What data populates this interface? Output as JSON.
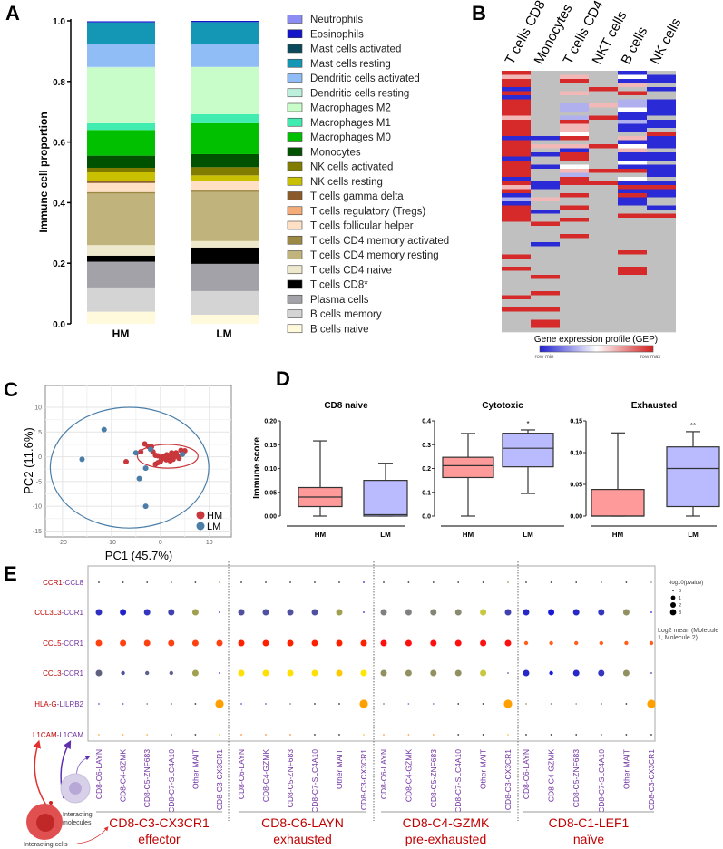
{
  "chart_data": [
    {
      "id": "A",
      "panel_label": "A",
      "type": "bar",
      "stacked": true,
      "ylabel": "Immune cell proportion",
      "ylim": [
        0,
        1
      ],
      "yticks": [
        "0.0",
        "0.2",
        "0.4",
        "0.6",
        "0.8",
        "1.0"
      ],
      "categories": [
        "HM",
        "LM"
      ],
      "legend_position": "right",
      "series": [
        {
          "name": "Neutrophils",
          "color": "#8c8cf5",
          "values": [
            0.002,
            0.0
          ]
        },
        {
          "name": "Eosinophils",
          "color": "#1414c8",
          "values": [
            0.003,
            0.004
          ]
        },
        {
          "name": "Mast cells activated",
          "color": "#0b4a5c",
          "values": [
            0.0,
            0.0
          ]
        },
        {
          "name": "Mast cells resting",
          "color": "#1497b4",
          "values": [
            0.07,
            0.071
          ]
        },
        {
          "name": "Dendritic cells activated",
          "color": "#90bdf6",
          "values": [
            0.077,
            0.077
          ]
        },
        {
          "name": "Dendritic cells resting",
          "color": "#bcefdc",
          "values": [
            0.003,
            0.0
          ]
        },
        {
          "name": "Macrophages M2",
          "color": "#c8fcc8",
          "values": [
            0.183,
            0.156
          ]
        },
        {
          "name": "Macrophages M1",
          "color": "#40ecb0",
          "values": [
            0.022,
            0.03
          ]
        },
        {
          "name": "Macrophages M0",
          "color": "#00c000",
          "values": [
            0.085,
            0.102
          ]
        },
        {
          "name": "Monocytes",
          "color": "#005200",
          "values": [
            0.04,
            0.043
          ]
        },
        {
          "name": "NK cells activated",
          "color": "#807c00",
          "values": [
            0.015,
            0.027
          ]
        },
        {
          "name": "NK cells resting",
          "color": "#c8c000",
          "values": [
            0.03,
            0.018
          ]
        },
        {
          "name": "T cells gamma delta",
          "color": "#8b5a2b",
          "values": [
            0.005,
            0.0
          ]
        },
        {
          "name": "T cells regulatory (Tregs)",
          "color": "#f4ac78",
          "values": [
            0.0,
            0.0
          ]
        },
        {
          "name": "T cells follicular helper",
          "color": "#ffe0c4",
          "values": [
            0.03,
            0.032
          ]
        },
        {
          "name": "T cells CD4 memory activated",
          "color": "#9c8a44",
          "values": [
            0.005,
            0.005
          ]
        },
        {
          "name": "T cells CD4 memory resting",
          "color": "#c0b47c",
          "values": [
            0.17,
            0.162
          ]
        },
        {
          "name": "T cells CD4 naive",
          "color": "#eee8cc",
          "values": [
            0.035,
            0.021
          ]
        },
        {
          "name": "T cells CD8*",
          "color": "#000000",
          "values": [
            0.02,
            0.054
          ]
        },
        {
          "name": "Plasma cells",
          "color": "#a2a2a8",
          "values": [
            0.085,
            0.09
          ]
        },
        {
          "name": "B cells memory",
          "color": "#d4d4d4",
          "values": [
            0.08,
            0.078
          ]
        },
        {
          "name": "B cells naive",
          "color": "#fffadc",
          "values": [
            0.04,
            0.03
          ]
        }
      ]
    },
    {
      "id": "B",
      "panel_label": "B",
      "type": "heatmap",
      "columns": [
        "T cells CD8",
        "Monocytes",
        "T cells CD4",
        "NKT cells",
        "B cells",
        "NK cells"
      ],
      "colorbar_title": "Gene expression profile (GEP)",
      "colorbar_min_label": "row min",
      "colorbar_max_label": "row max",
      "color_codes": {
        "R": "#d62a2a",
        "r": "#f2b8b8",
        "B": "#2a2ad6",
        "b": "#b0b0ee",
        "W": "#ffffff",
        "G": "#c0c0c0"
      },
      "cells": [
        "RrRRBRBRRRRrRRRRBRRRRBRRRRBRrRBbBRRRRGGGGGGGGRGGRGGGGGGRGGRGGGGG",
        "GGGGGGGGGGGGGGGGBGrGBGGBGGGBBGGrGGBGGRGGGGBGGGGGGGRGGGRGGGRGGRRG",
        "GrRGGrGGbbGbRrrWRGrBRRGWrbRRGGRGGRGGRGGGRGGGGGGGGGGGGGGGGGGGGGGG",
        "GGGGRGGGrGGRGGGGGGRGGGGGRGGRGGGGGGGGGGGGGGGGGGGGGGGGGGGGGGGGGGGG",
        "BWBrGRGbbWBBbBBGrBWrBBWBRGWBRBRBBGGRGGGGGGGGRGGGRRGGGGGGGGGGGGGG",
        "GBBGBGGBBBBGBBGRBBBGBBGBBBGBRBBGGBGRGGGGGGGGGGGGGGGGGGGGGGGGGGGG"
      ]
    },
    {
      "id": "C",
      "panel_label": "C",
      "type": "scatter",
      "xlabel": "PC1 (45.7%)",
      "ylabel": "PC2 (11.6%)",
      "xlim": [
        -23.5,
        14.5
      ],
      "ylim": [
        -16.2,
        14.4
      ],
      "xticks": [
        -20,
        -10,
        0,
        10
      ],
      "yticks": [
        -15,
        -10,
        -5,
        0,
        5,
        10
      ],
      "grid": true,
      "legend_position": "bottom-right",
      "series": [
        {
          "name": "HM",
          "color": "#c8373b",
          "ellipse": {
            "cx": 1.5,
            "cy": 0.1,
            "rx": 6.2,
            "ry": 2.4
          },
          "points": [
            [
              -7,
              -1
            ],
            [
              -4,
              1
            ],
            [
              -3.2,
              2.6
            ],
            [
              -2.5,
              2.1
            ],
            [
              -1.8,
              2
            ],
            [
              -1.5,
              1
            ],
            [
              -1,
              0.3
            ],
            [
              -0.5,
              0.2
            ],
            [
              -1,
              -1.5
            ],
            [
              -0.5,
              -1.2
            ],
            [
              0,
              -1
            ],
            [
              0.2,
              -0.5
            ],
            [
              0.5,
              0
            ],
            [
              1,
              0
            ],
            [
              1.2,
              -0.6
            ],
            [
              1.5,
              -0.3
            ],
            [
              2,
              0.2
            ],
            [
              2.3,
              0.8
            ],
            [
              2.6,
              -0.5
            ],
            [
              3,
              0.5
            ],
            [
              3.2,
              0.8
            ],
            [
              3.5,
              0.1
            ],
            [
              3.8,
              -0.3
            ],
            [
              4.2,
              1.3
            ],
            [
              4.6,
              0.7
            ],
            [
              5,
              1.2
            ],
            [
              2,
              -0.8
            ],
            [
              1.3,
              0.4
            ],
            [
              0.8,
              -0.2
            ],
            [
              2.8,
              0
            ]
          ]
        },
        {
          "name": "LM",
          "color": "#4a7ea8",
          "ellipse": {
            "cx": -6.3,
            "cy": -2.2,
            "rx": 16.2,
            "ry": 12.2
          },
          "points": [
            [
              -16,
              -0.5
            ],
            [
              -11.5,
              5.5
            ],
            [
              -5,
              0.8
            ],
            [
              -4.3,
              -4.4
            ],
            [
              -3,
              -2.3
            ],
            [
              -3,
              -10
            ],
            [
              -2,
              1.5
            ],
            [
              4.5,
              0.5
            ]
          ]
        }
      ]
    },
    {
      "id": "D1",
      "panel_label": "D",
      "type": "box",
      "title": "CD8 naive",
      "ylabel": "Immune score",
      "ylim": [
        0,
        0.2
      ],
      "yticks": [
        "0.00",
        "0.05",
        "0.10",
        "0.15",
        "0.20"
      ],
      "categories": [
        "HM",
        "LM"
      ],
      "colors": [
        "#ff9a9a",
        "#babaff"
      ],
      "boxes": [
        {
          "min": 0,
          "q1": 0.02,
          "median": 0.04,
          "q3": 0.06,
          "max": 0.158
        },
        {
          "min": 0,
          "q1": 0,
          "median": 0.003,
          "q3": 0.075,
          "max": 0.111
        }
      ],
      "significance": [
        "",
        ""
      ]
    },
    {
      "id": "D2",
      "type": "box",
      "title": "Cytotoxic",
      "ylim": [
        0,
        0.4
      ],
      "yticks": [
        "0.0",
        "0.1",
        "0.2",
        "0.3",
        "0.4"
      ],
      "categories": [
        "HM",
        "LM"
      ],
      "colors": [
        "#ff9a9a",
        "#babaff"
      ],
      "boxes": [
        {
          "min": 0,
          "q1": 0.162,
          "median": 0.212,
          "q3": 0.247,
          "max": 0.347
        },
        {
          "min": 0.095,
          "q1": 0.207,
          "median": 0.285,
          "q3": 0.348,
          "max": 0.362
        }
      ],
      "significance": [
        "",
        "*"
      ]
    },
    {
      "id": "D3",
      "type": "box",
      "title": "Exhausted",
      "ylim": [
        0,
        0.15
      ],
      "yticks": [
        "0.00",
        "0.05",
        "0.10",
        "0.15"
      ],
      "categories": [
        "HM",
        "LM"
      ],
      "colors": [
        "#ff9a9a",
        "#babaff"
      ],
      "boxes": [
        {
          "min": 0,
          "q1": 0,
          "median": 0,
          "q3": 0.042,
          "max": 0.131
        },
        {
          "min": 0,
          "q1": 0.015,
          "median": 0.075,
          "q3": 0.109,
          "max": 0.133
        }
      ],
      "significance": [
        "",
        "**"
      ]
    },
    {
      "id": "E",
      "panel_label": "E",
      "type": "dotplot",
      "rows": [
        {
          "ligand": "CCR1",
          "receptor": "CCL8"
        },
        {
          "ligand": "CCL3L3",
          "receptor": "CCR1"
        },
        {
          "ligand": "CCL5",
          "receptor": "CCR1"
        },
        {
          "ligand": "CCL3",
          "receptor": "CCR1"
        },
        {
          "ligand": "HLA-G",
          "receptor": "LILRB2"
        },
        {
          "ligand": "L1CAM",
          "receptor": "L1CAM"
        }
      ],
      "column_labels": [
        "CD8-C6-LAYN",
        "CD8-C4-GZMK",
        "CD8-C5-ZNF683",
        "CD8-C7-SLC4A10",
        "Other MAIT",
        "CD8-C3-CX3CR1"
      ],
      "groups": [
        {
          "name": "CD8-C3-CX3CR1",
          "subtitle": "effector",
          "dots": [
            [
              "#333333|0",
              "#333333|0",
              "#333333|0",
              "#333333|0",
              "#333333|0",
              "#a0a050|0"
            ],
            [
              "#3030c0|2",
              "#2020d0|2",
              "#3535c0|2",
              "#4040b0|2",
              "#a0a050|2",
              "#2020d0|0"
            ],
            [
              "#ff4010|2",
              "#ff4010|2",
              "#ff4010|2",
              "#ff4010|2",
              "#ff4010|2",
              "#ff4010|2"
            ],
            [
              "#606080|2",
              "#5050a0|1",
              "#606090|1",
              "#606090|1",
              "#a0a050|2",
              "#2020d0|0"
            ],
            [
              "#6060c0|0",
              "#6060c0|0",
              "#8080b0|0",
              "#333333|0",
              "#333333|0",
              "#ffa000|3"
            ],
            [
              "#ffb040|0",
              "#ffb040|0",
              "#ffb040|0",
              "#333333|0",
              "#333333|0",
              "#f0d020|0"
            ]
          ]
        },
        {
          "name": "CD8-C6-LAYN",
          "subtitle": "exhausted",
          "dots": [
            [
              "#333333|0",
              "#333333|0",
              "#333333|0",
              "#333333|0",
              "#333333|0",
              "#2020d0|0"
            ],
            [
              "#5050a0|2",
              "#5050a0|2",
              "#5050a0|2",
              "#5050a0|2",
              "#a0a050|2",
              "#2020d0|0"
            ],
            [
              "#ff2000|2",
              "#ff2000|2",
              "#ff2000|2",
              "#ff2000|2",
              "#ff2000|2",
              "#ff2000|2"
            ],
            [
              "#ffe000|2",
              "#ffe000|2",
              "#ffe000|2",
              "#ffe000|2",
              "#ffc800|2",
              "#ffe800|2"
            ],
            [
              "#6060c0|0",
              "#6060c0|0",
              "#888888|0",
              "#333333|0",
              "#333333|0",
              "#ffa000|3"
            ],
            [
              "#ff9040|0",
              "#ff9040|0",
              "#ff9040|0",
              "#333333|0",
              "#333333|0",
              "#ffc040|0"
            ]
          ]
        },
        {
          "name": "CD8-C4-GZMK",
          "subtitle": "pre-exhausted",
          "dots": [
            [
              "#333333|0",
              "#333333|0",
              "#333333|0",
              "#333333|0",
              "#333333|0",
              "#a0a050|0"
            ],
            [
              "#808080|2",
              "#808080|2",
              "#858575|2",
              "#8a8a70|2",
              "#c8c840|2",
              "#4040b0|2"
            ],
            [
              "#ff1010|2",
              "#ff1010|2",
              "#ff1010|2",
              "#ff1010|2",
              "#ff1010|2",
              "#ff1010|2"
            ],
            [
              "#909060|2",
              "#909060|2",
              "#909060|2",
              "#909060|2",
              "#c8c840|2",
              "#6060a0|0"
            ],
            [
              "#8080c0|0",
              "#8080c0|0",
              "#8080c0|0",
              "#333333|0",
              "#333333|0",
              "#ffa000|3"
            ],
            [
              "#ffa040|0",
              "#ffa040|0",
              "#ffa040|0",
              "#333333|0",
              "#333333|0",
              "#ffc040|0"
            ]
          ]
        },
        {
          "name": "CD8-C1-LEF1",
          "subtitle": "naïve",
          "dots": [
            [
              "#333333|0",
              "#333333|0",
              "#333333|0",
              "#333333|0",
              "#333333|0",
              "#999999|0"
            ],
            [
              "#2828c8|2",
              "#1818d8|2",
              "#2828c8|2",
              "#3535c0|2",
              "#909060|2",
              "#2020d0|0"
            ],
            [
              "#ff6020|1",
              "#ff6020|1",
              "#ff6020|1",
              "#ff6020|1",
              "#ff6020|1",
              "#ff6020|1"
            ],
            [
              "#2828c8|2",
              "#1818e0|1",
              "#2828c8|2",
              "#3535c0|2",
              "#909060|2",
              "#4040b0|0"
            ],
            [
              "#a0a070|0",
              "#888888|0",
              "#a0a070|0",
              "#333333|0",
              "#333333|0",
              "#ffa000|3"
            ],
            [
              "#333333|0",
              "#333333|0",
              "#333333|0",
              "#333333|0",
              "#333333|0",
              "#333333|0"
            ]
          ]
        }
      ],
      "size_legend_title": "-log10(pvalue)",
      "size_legend_values": [
        "0",
        "1",
        "2",
        "3"
      ],
      "color_legend_title": "Log2 mean (Molecule 1, Molecule 2)",
      "illustration": {
        "cells_label": "Interacting cells",
        "molecules_label_1": "Interacting",
        "molecules_label_2": "molecules"
      },
      "ligand_color": "#c00000",
      "receptor_color": "#7030a0"
    }
  ]
}
